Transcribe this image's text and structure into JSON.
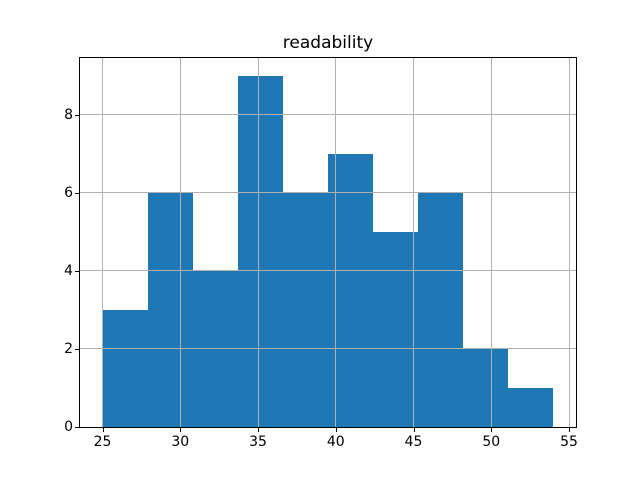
{
  "chart_data": {
    "type": "bar",
    "subtype": "histogram",
    "title": "readability",
    "xlabel": "",
    "ylabel": "",
    "bin_edges": [
      25.0,
      27.9,
      30.8,
      33.7,
      36.6,
      39.5,
      42.4,
      45.3,
      48.2,
      51.1,
      54.0
    ],
    "counts": [
      3,
      6,
      4,
      9,
      6,
      7,
      5,
      6,
      2,
      1
    ],
    "xticks": [
      25,
      30,
      35,
      40,
      45,
      50,
      55
    ],
    "yticks": [
      0,
      2,
      4,
      6,
      8
    ],
    "xlim": [
      23.55,
      55.45
    ],
    "ylim": [
      0,
      9.45
    ],
    "grid": true,
    "legend": false,
    "bar_color": "#1f77b4",
    "grid_color": "#b0b0b0",
    "spine_color": "#000000",
    "background_color": "#ffffff"
  }
}
